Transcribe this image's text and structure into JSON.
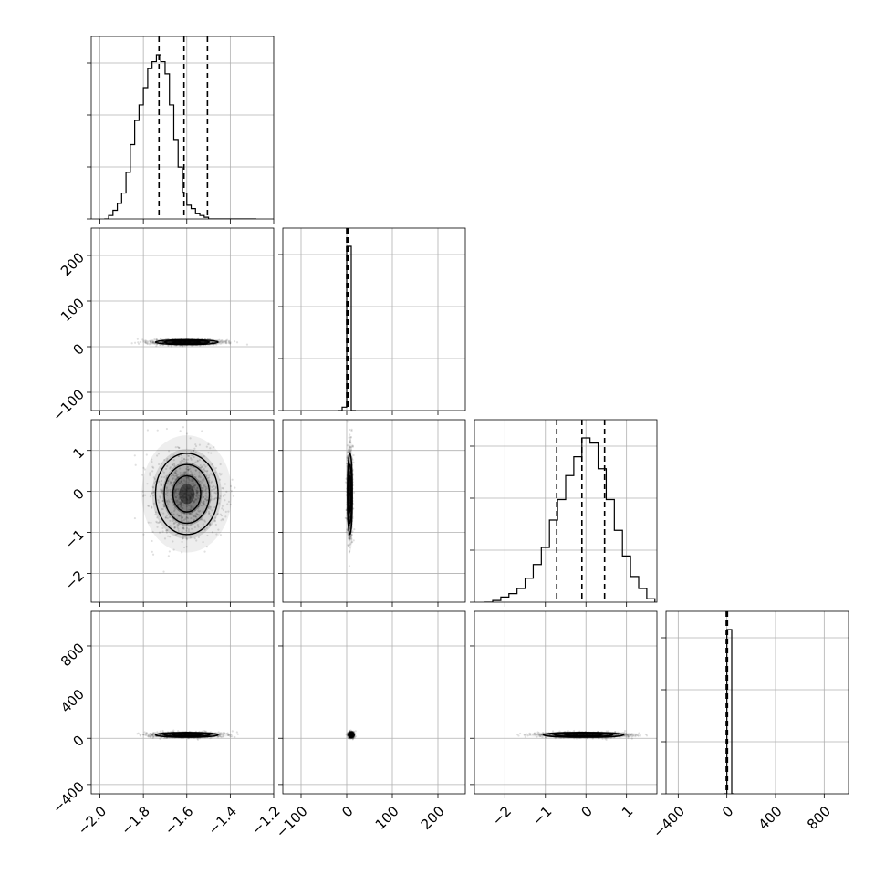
{
  "chart_data": {
    "type": "corner",
    "parameters": [
      {
        "lim": [
          -2.04,
          -1.2
        ],
        "ticks": [
          -2.0,
          -1.8,
          -1.6,
          -1.4,
          -1.2
        ],
        "tick_labels": [
          "−2.0",
          "−1.8",
          "−1.6",
          "−1.4",
          "−1.2"
        ]
      },
      {
        "lim": [
          -140,
          260
        ],
        "ticks": [
          -100,
          0,
          100,
          200
        ],
        "x_tick_labels": [
          "−100",
          "0",
          "100",
          "200"
        ],
        "y_ticks": [
          -100,
          0,
          100,
          200
        ],
        "y_tick_labels": [
          "−100",
          "0",
          "100",
          "200"
        ]
      },
      {
        "lim": [
          -2.75,
          1.75
        ],
        "x_ticks": [
          -2,
          -1,
          0,
          1
        ],
        "x_tick_labels": [
          "−2",
          "−1",
          "0",
          "1"
        ],
        "y_lim": [
          -2.7,
          1.75
        ],
        "y_ticks": [
          -2,
          -1,
          0,
          1
        ],
        "y_tick_labels": [
          "−2",
          "−1",
          "0",
          "1"
        ]
      },
      {
        "lim": [
          -500,
          1000
        ],
        "ticks": [
          -400,
          0,
          400,
          800
        ],
        "tick_labels": [
          "−400",
          "0",
          "400",
          "800"
        ],
        "y_lim": [
          -480,
          1100
        ],
        "y_ticks": [
          -400,
          0,
          400,
          800
        ],
        "y_tick_labels": [
          "−400",
          "0",
          "400",
          "800"
        ]
      }
    ],
    "histograms": [
      {
        "param": 0,
        "edges": [
          -1.98,
          -1.96,
          -1.94,
          -1.92,
          -1.9,
          -1.88,
          -1.86,
          -1.84,
          -1.82,
          -1.8,
          -1.78,
          -1.76,
          -1.74,
          -1.72,
          -1.7,
          -1.68,
          -1.66,
          -1.64,
          -1.62,
          -1.6,
          -1.58,
          -1.56,
          -1.54,
          -1.52,
          -1.5,
          -1.48,
          -1.46,
          -1.44,
          -1.42,
          -1.4,
          -1.38,
          -1.36,
          -1.34,
          -1.32,
          -1.3,
          -1.28
        ],
        "counts": [
          0,
          2,
          5,
          9,
          15,
          27,
          43,
          57,
          66,
          76,
          87,
          91,
          95,
          91,
          84,
          66,
          46,
          30,
          15,
          8,
          6,
          3,
          2,
          1,
          0,
          0,
          0,
          0,
          0,
          0,
          0,
          0,
          0,
          0,
          0
        ],
        "quantiles": [
          -1.728,
          -1.613,
          -1.505
        ]
      },
      {
        "param": 1,
        "edges": [
          -20,
          -10,
          0,
          10,
          20
        ],
        "counts": [
          0,
          2,
          97,
          0
        ],
        "quantiles": [
          0,
          1,
          3
        ]
      },
      {
        "param": 2,
        "edges": [
          -2.5,
          -2.3,
          -2.1,
          -1.9,
          -1.7,
          -1.5,
          -1.3,
          -1.1,
          -0.9,
          -0.7,
          -0.5,
          -0.3,
          -0.1,
          0.1,
          0.3,
          0.5,
          0.7,
          0.9,
          1.1,
          1.3,
          1.5,
          1.7
        ],
        "counts": [
          0,
          1,
          3,
          5,
          8,
          14,
          22,
          32,
          48,
          60,
          74,
          85,
          96,
          93,
          78,
          60,
          42,
          27,
          15,
          8,
          2
        ],
        "quantiles": [
          -0.72,
          -0.1,
          0.46
        ]
      },
      {
        "param": 3,
        "edges": [
          -20,
          0,
          20,
          40,
          60
        ],
        "counts": [
          0,
          98,
          98,
          0
        ],
        "quantiles": [
          -5,
          0,
          5
        ]
      }
    ],
    "pairs": [
      {
        "x_param": 0,
        "y_param": 1,
        "center": [
          -1.6,
          10
        ],
        "sigma": [
          0.08,
          3
        ]
      },
      {
        "x_param": 0,
        "y_param": 2,
        "center": [
          -1.6,
          -0.06
        ],
        "sigma": [
          0.08,
          0.55
        ]
      },
      {
        "x_param": 1,
        "y_param": 2,
        "center": [
          7,
          -0.06
        ],
        "sigma": [
          3,
          0.55
        ]
      },
      {
        "x_param": 0,
        "y_param": 3,
        "center": [
          -1.6,
          30
        ],
        "sigma": [
          0.08,
          12
        ]
      },
      {
        "x_param": 1,
        "y_param": 3,
        "center": [
          10,
          30
        ],
        "sigma": [
          3,
          12
        ]
      },
      {
        "x_param": 2,
        "y_param": 3,
        "center": [
          -0.06,
          30
        ],
        "sigma": [
          0.55,
          12
        ]
      }
    ],
    "grid": true,
    "title": "",
    "axis_labels": []
  }
}
